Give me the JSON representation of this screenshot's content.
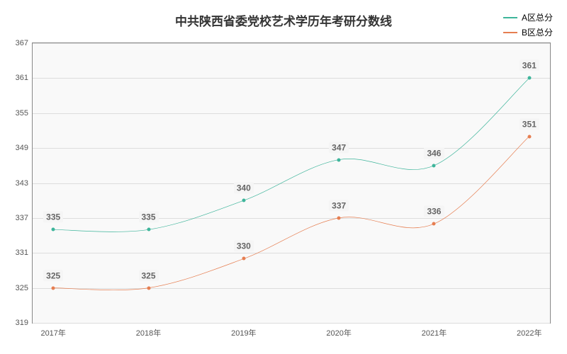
{
  "chart": {
    "type": "line",
    "title": "中共陕西省委党校艺术学历年考研分数线",
    "title_fontsize": 17,
    "background_color": "#ffffff",
    "plot_background": "#f9f9f9",
    "grid_color": "#dddddd",
    "axis_color": "#888888",
    "tick_font_color": "#555555",
    "tick_fontsize": 11,
    "label_fontsize": 12,
    "label_color": "#666666",
    "label_bg": "#f5f5f5",
    "x_labels": [
      "2017年",
      "2018年",
      "2019年",
      "2020年",
      "2021年",
      "2022年"
    ],
    "ylim": [
      319,
      367
    ],
    "ytick_step": 6,
    "yticks": [
      319,
      325,
      331,
      337,
      343,
      349,
      355,
      361,
      367
    ],
    "series": [
      {
        "name": "A区总分",
        "color": "#3eb59b",
        "line_width": 2,
        "values": [
          335,
          335,
          340,
          347,
          346,
          361
        ]
      },
      {
        "name": "B区总分",
        "color": "#e67e51",
        "line_width": 2,
        "values": [
          325,
          325,
          330,
          337,
          336,
          351
        ]
      }
    ],
    "legend_position": "top-right",
    "plot_inset_percent": 4
  }
}
